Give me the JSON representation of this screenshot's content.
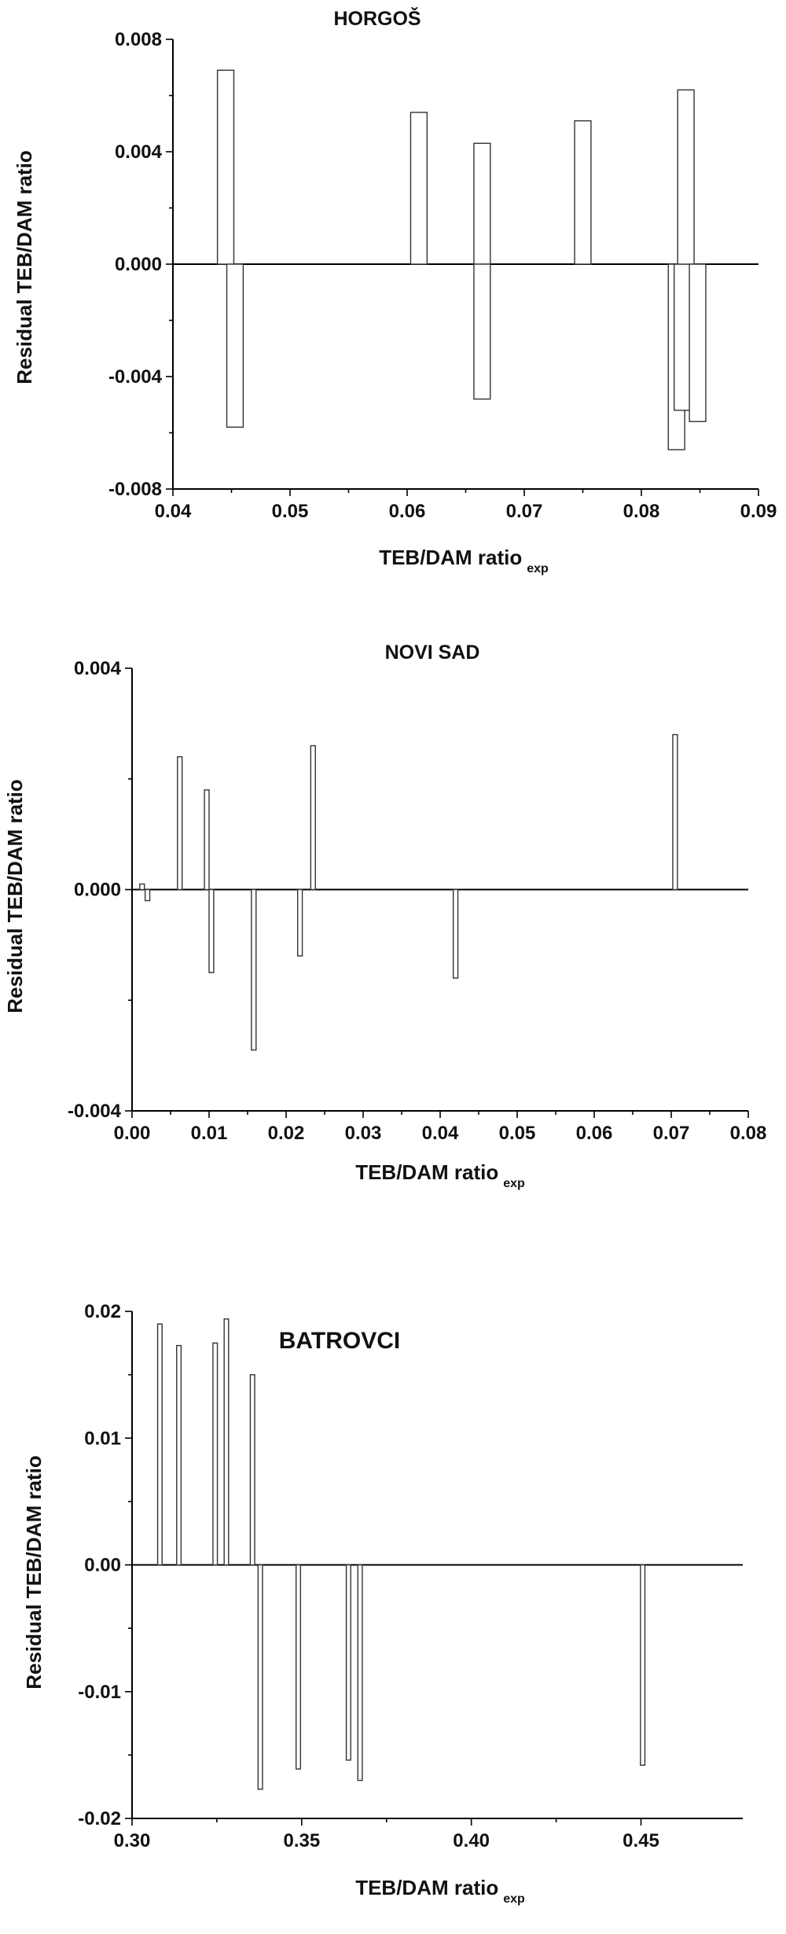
{
  "chart_data": [
    {
      "type": "bar",
      "title": "HORGOŠ",
      "xlabel": "TEB/DAM ratio",
      "xlabel_sub": "exp",
      "ylabel": "Residual TEB/DAM ratio",
      "xlim": [
        0.04,
        0.09
      ],
      "ylim": [
        -0.008,
        0.008
      ],
      "xticks": [
        "0.04",
        "0.05",
        "0.06",
        "0.07",
        "0.08",
        "0.09"
      ],
      "yticks": [
        "-0.008",
        "-0.004",
        "0.000",
        "0.004",
        "0.008"
      ],
      "bar_width": 0.0014,
      "points": [
        {
          "x": 0.0445,
          "y": 0.0069
        },
        {
          "x": 0.0453,
          "y": -0.0058
        },
        {
          "x": 0.061,
          "y": 0.0054
        },
        {
          "x": 0.0664,
          "y": 0.0043
        },
        {
          "x": 0.0664,
          "y": -0.0048
        },
        {
          "x": 0.075,
          "y": 0.0051
        },
        {
          "x": 0.083,
          "y": -0.0066
        },
        {
          "x": 0.0835,
          "y": -0.0052
        },
        {
          "x": 0.0838,
          "y": 0.0062
        },
        {
          "x": 0.0848,
          "y": -0.0056
        }
      ]
    },
    {
      "type": "bar",
      "title": "NOVI SAD",
      "xlabel": "TEB/DAM ratio",
      "xlabel_sub": "exp",
      "ylabel": "Residual TEB/DAM ratio",
      "xlim": [
        0.0,
        0.08
      ],
      "ylim": [
        -0.004,
        0.004
      ],
      "xticks": [
        "0.00",
        "0.01",
        "0.02",
        "0.03",
        "0.04",
        "0.05",
        "0.06",
        "0.07",
        "0.08"
      ],
      "yticks": [
        "-0.004",
        "0.000",
        "0.004"
      ],
      "bar_width": 0.0006,
      "points": [
        {
          "x": 0.0013,
          "y": 0.0001
        },
        {
          "x": 0.002,
          "y": -0.0002
        },
        {
          "x": 0.0062,
          "y": 0.0024
        },
        {
          "x": 0.0097,
          "y": 0.0018
        },
        {
          "x": 0.0103,
          "y": -0.0015
        },
        {
          "x": 0.0158,
          "y": -0.0029
        },
        {
          "x": 0.0218,
          "y": -0.0012
        },
        {
          "x": 0.0235,
          "y": 0.0026
        },
        {
          "x": 0.042,
          "y": -0.0016
        },
        {
          "x": 0.0705,
          "y": 0.0028
        }
      ]
    },
    {
      "type": "bar",
      "title": "BATROVCI",
      "xlabel": "TEB/DAM ratio",
      "xlabel_sub": "exp",
      "ylabel": "Residual TEB/DAM ratio",
      "xlim": [
        0.3,
        0.48
      ],
      "ylim": [
        -0.02,
        0.02
      ],
      "xticks": [
        "0.30",
        "0.35",
        "0.40",
        "0.45"
      ],
      "yticks": [
        "-0.02",
        "-0.01",
        "0.00",
        "0.01",
        "0.02"
      ],
      "bar_width": 0.0013,
      "points": [
        {
          "x": 0.3082,
          "y": 0.019
        },
        {
          "x": 0.3138,
          "y": 0.0173
        },
        {
          "x": 0.3245,
          "y": 0.0175
        },
        {
          "x": 0.3278,
          "y": 0.0194
        },
        {
          "x": 0.3355,
          "y": 0.015
        },
        {
          "x": 0.3378,
          "y": -0.0177
        },
        {
          "x": 0.349,
          "y": -0.0161
        },
        {
          "x": 0.3638,
          "y": -0.0154
        },
        {
          "x": 0.3672,
          "y": -0.017
        },
        {
          "x": 0.4505,
          "y": -0.0158
        }
      ]
    }
  ]
}
